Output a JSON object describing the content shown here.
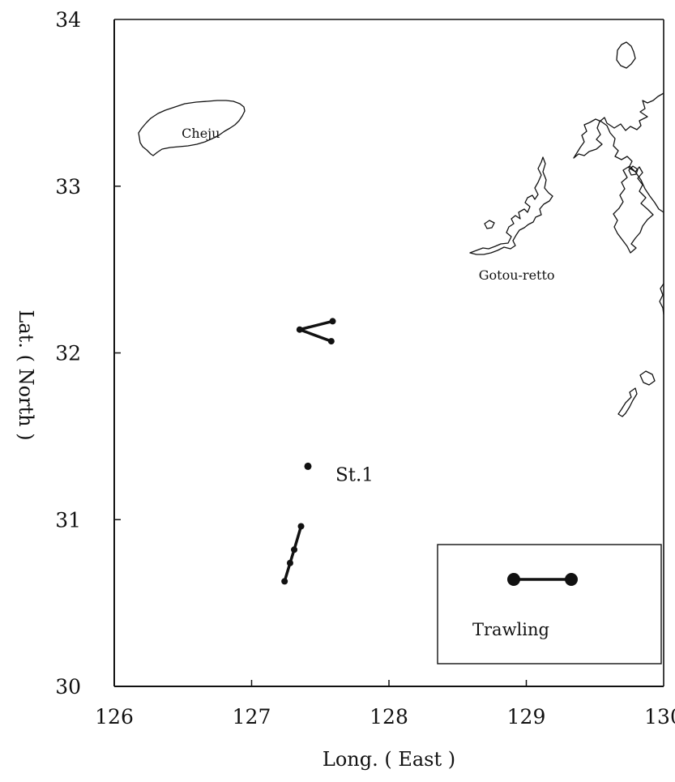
{
  "chart_data": {
    "type": "map",
    "xlabel": "Long. ( East )",
    "ylabel": "Lat. ( North )",
    "xlim": [
      126,
      130
    ],
    "ylim": [
      30,
      34
    ],
    "x_ticks": [
      "126",
      "127",
      "128",
      "129",
      "130"
    ],
    "y_ticks": [
      "30",
      "31",
      "32",
      "33",
      "34"
    ],
    "place_labels": [
      {
        "name": "Cheju",
        "lon": 126.63,
        "lat": 33.29
      },
      {
        "name": "Gotou-retto",
        "lon": 128.93,
        "lat": 32.44
      }
    ],
    "station": {
      "label": "St.1",
      "lon": 127.41,
      "lat": 31.32
    },
    "trawling_tracks": [
      {
        "points": [
          [
            127.59,
            32.19
          ],
          [
            127.35,
            32.14
          ],
          [
            127.58,
            32.07
          ]
        ]
      },
      {
        "points": [
          [
            127.36,
            30.96
          ],
          [
            127.31,
            30.82
          ],
          [
            127.28,
            30.74
          ],
          [
            127.24,
            30.63
          ]
        ]
      }
    ],
    "legend": {
      "label": "Trawling",
      "position": "bottom-right"
    }
  }
}
